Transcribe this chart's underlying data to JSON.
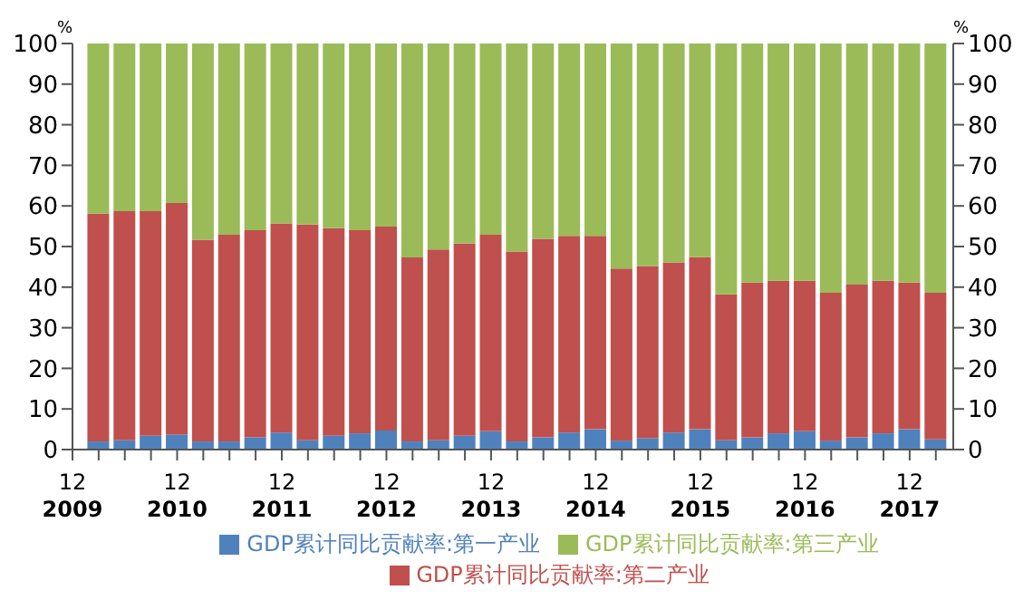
{
  "chart_data": {
    "type": "bar",
    "stacked": true,
    "ylabel": "%",
    "y2label": "%",
    "x": [
      "2010-03",
      "2010-06",
      "2010-09",
      "2010-12",
      "2011-03",
      "2011-06",
      "2011-09",
      "2011-12",
      "2012-03",
      "2012-06",
      "2012-09",
      "2012-12",
      "2013-03",
      "2013-06",
      "2013-09",
      "2013-12",
      "2014-03",
      "2014-06",
      "2014-09",
      "2014-12",
      "2015-03",
      "2015-06",
      "2015-09",
      "2015-12",
      "2016-03",
      "2016-06",
      "2016-09",
      "2016-12",
      "2017-03",
      "2017-06",
      "2017-09",
      "2017-12",
      "2018-03"
    ],
    "xlim": [
      "2009-12",
      "2018-05"
    ],
    "xticks": [
      {
        "value": "2009-12",
        "label": "12\n2009"
      },
      {
        "value": "2010-03",
        "label": null
      },
      {
        "value": "2010-06",
        "label": null
      },
      {
        "value": "2010-09",
        "label": null
      },
      {
        "value": "2010-12",
        "label": "12\n2010"
      },
      {
        "value": "2011-03",
        "label": null
      },
      {
        "value": "2011-06",
        "label": null
      },
      {
        "value": "2011-09",
        "label": null
      },
      {
        "value": "2011-12",
        "label": "12\n2011"
      },
      {
        "value": "2012-03",
        "label": null
      },
      {
        "value": "2012-06",
        "label": null
      },
      {
        "value": "2012-09",
        "label": null
      },
      {
        "value": "2012-12",
        "label": "12\n2012"
      },
      {
        "value": "2013-03",
        "label": null
      },
      {
        "value": "2013-06",
        "label": null
      },
      {
        "value": "2013-09",
        "label": null
      },
      {
        "value": "2013-12",
        "label": "12\n2013"
      },
      {
        "value": "2014-03",
        "label": null
      },
      {
        "value": "2014-06",
        "label": null
      },
      {
        "value": "2014-09",
        "label": null
      },
      {
        "value": "2014-12",
        "label": "12\n2014"
      },
      {
        "value": "2015-03",
        "label": null
      },
      {
        "value": "2015-06",
        "label": null
      },
      {
        "value": "2015-09",
        "label": null
      },
      {
        "value": "2015-12",
        "label": "12\n2015"
      },
      {
        "value": "2016-03",
        "label": null
      },
      {
        "value": "2016-06",
        "label": null
      },
      {
        "value": "2016-09",
        "label": null
      },
      {
        "value": "2016-12",
        "label": "12\n2016"
      },
      {
        "value": "2017-03",
        "label": null
      },
      {
        "value": "2017-06",
        "label": null
      },
      {
        "value": "2017-09",
        "label": null
      },
      {
        "value": "2017-12",
        "label": "12\n2017"
      },
      {
        "value": "2018-03",
        "label": null
      }
    ],
    "ylim": [
      0,
      100
    ],
    "yticks": [
      0,
      10,
      20,
      30,
      40,
      50,
      60,
      70,
      80,
      90,
      100
    ],
    "y2lim": [
      0,
      100
    ],
    "y2ticks": [
      0,
      10,
      20,
      30,
      40,
      50,
      60,
      70,
      80,
      90,
      100
    ],
    "legend": "bottom",
    "grid": false,
    "series": [
      {
        "name": "GDP累计同比贡献率:第一产业",
        "color": "#4f81bd",
        "values": [
          2.0,
          2.3,
          3.4,
          3.7,
          2.0,
          2.0,
          3.0,
          4.2,
          2.3,
          3.4,
          4.0,
          4.7,
          2.0,
          2.3,
          3.4,
          4.5,
          2.0,
          3.0,
          4.2,
          5.0,
          2.2,
          2.8,
          4.2,
          5.0,
          2.3,
          3.0,
          4.0,
          4.5,
          2.2,
          3.0,
          4.0,
          5.0,
          2.5
        ]
      },
      {
        "name": "GDP累计同比贡献率:第二产业",
        "color": "#c0504d",
        "values": [
          56.1,
          56.4,
          55.3,
          57.0,
          49.7,
          50.9,
          51.0,
          51.5,
          53.1,
          51.1,
          50.0,
          50.2,
          45.3,
          47.0,
          47.3,
          48.4,
          46.8,
          48.9,
          48.4,
          47.6,
          42.4,
          42.4,
          41.9,
          42.4,
          35.9,
          38.1,
          37.6,
          37.1,
          36.4,
          37.6,
          37.6,
          36.1,
          36.1
        ]
      },
      {
        "name": "GDP累计同比贡献率:第三产业",
        "color": "#9bbb59",
        "values": [
          41.9,
          41.3,
          41.3,
          39.3,
          48.3,
          47.1,
          46.0,
          44.3,
          44.6,
          45.5,
          46.0,
          45.1,
          52.7,
          50.7,
          49.3,
          47.1,
          51.2,
          48.1,
          47.4,
          47.4,
          55.4,
          54.8,
          53.9,
          52.6,
          61.8,
          58.9,
          58.4,
          58.4,
          61.4,
          59.4,
          58.4,
          58.9,
          61.4
        ]
      }
    ]
  }
}
